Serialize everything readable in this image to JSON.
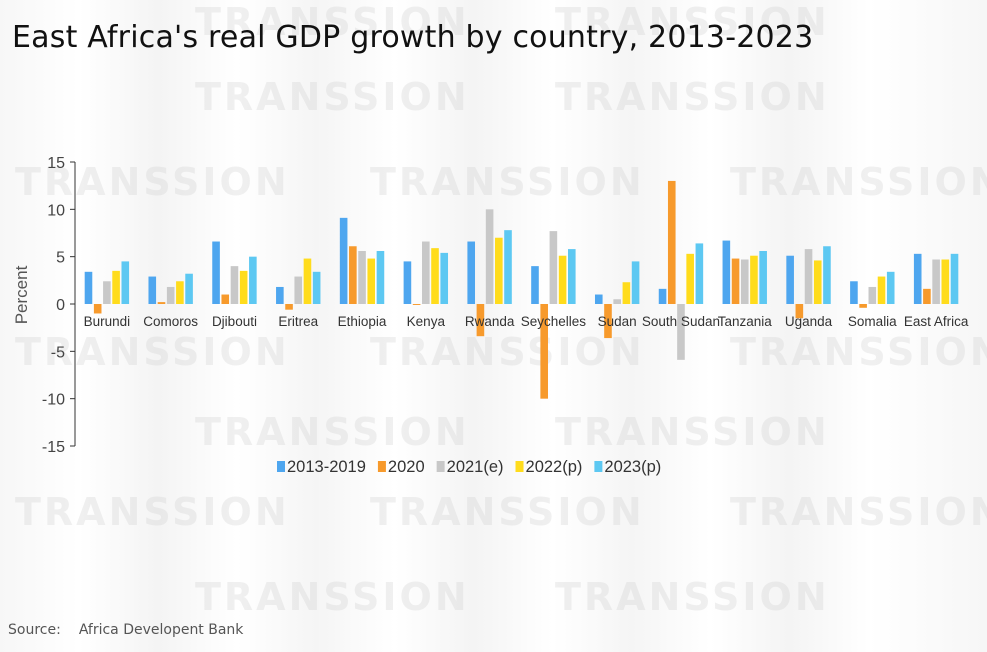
{
  "title": "East Africa's real GDP growth by country, 2013-2023",
  "source": {
    "label": "Source:",
    "text": "Africa Developent Bank"
  },
  "watermark": "TRANSSION",
  "colors": {
    "2013-2019": "#4ea6ef",
    "2020": "#f79a2c",
    "2021(e)": "#c8c8c8",
    "2022(p)": "#ffdc1c",
    "2023(p)": "#5dc8f2"
  },
  "chart_data": {
    "type": "bar",
    "title": "East Africa's real GDP growth by country, 2013-2023",
    "xlabel": "",
    "ylabel": "Percent",
    "ylim": [
      -15,
      15
    ],
    "yticks": [
      15,
      10,
      5,
      0,
      -5,
      -10,
      -15
    ],
    "legend_position": "bottom",
    "categories": [
      "Burundi",
      "Comoros",
      "Djibouti",
      "Eritrea",
      "Ethiopia",
      "Kenya",
      "Rwanda",
      "Seychelles",
      "Sudan",
      "South Sudan",
      "Tanzania",
      "Uganda",
      "Somalia",
      "East Africa"
    ],
    "series": [
      {
        "name": "2013-2019",
        "values": [
          3.4,
          2.9,
          6.6,
          1.8,
          9.1,
          4.5,
          6.6,
          4.0,
          1.0,
          1.6,
          6.7,
          5.1,
          2.4,
          5.3
        ]
      },
      {
        "name": "2020",
        "values": [
          -1.0,
          0.2,
          1.0,
          -0.6,
          6.1,
          -0.1,
          -3.4,
          -10.0,
          -3.6,
          13.0,
          4.8,
          -1.5,
          -0.4,
          1.6
        ]
      },
      {
        "name": "2021(e)",
        "values": [
          2.4,
          1.8,
          4.0,
          2.9,
          5.6,
          6.6,
          10.0,
          7.7,
          0.5,
          -5.9,
          4.7,
          5.8,
          1.8,
          4.7
        ]
      },
      {
        "name": "2022(p)",
        "values": [
          3.5,
          2.4,
          3.5,
          4.8,
          4.8,
          5.9,
          7.0,
          5.1,
          2.3,
          5.3,
          5.1,
          4.6,
          2.9,
          4.7
        ]
      },
      {
        "name": "2023(p)",
        "values": [
          4.5,
          3.2,
          5.0,
          3.4,
          5.6,
          5.4,
          7.8,
          5.8,
          4.5,
          6.4,
          5.6,
          6.1,
          3.4,
          5.3
        ]
      }
    ]
  }
}
